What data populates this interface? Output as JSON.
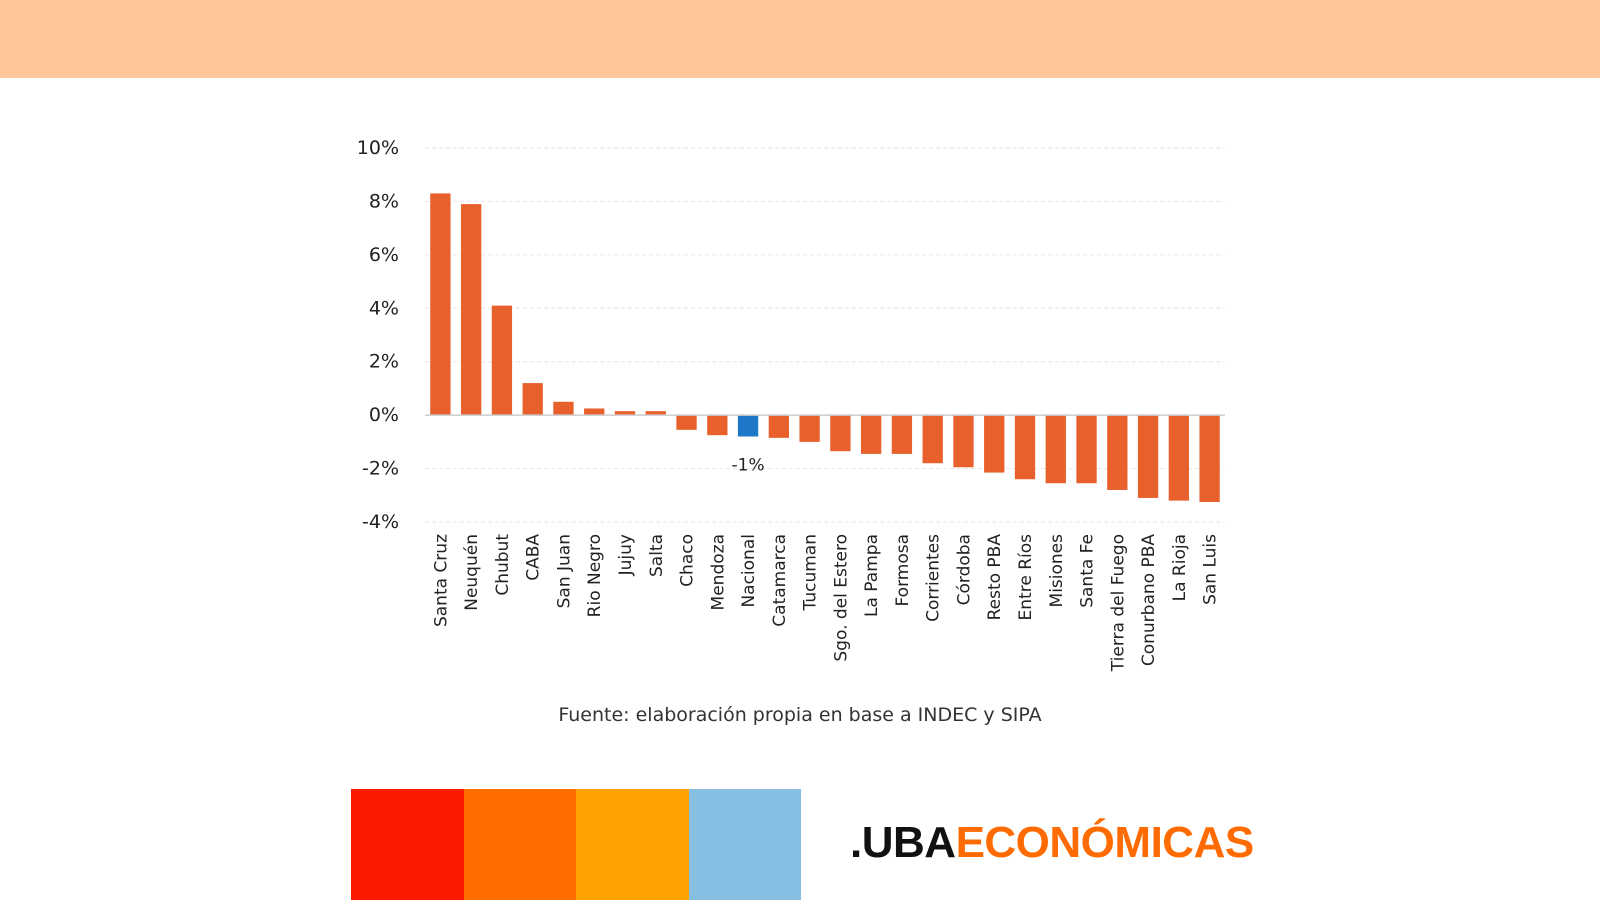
{
  "colors": {
    "header_band": "#ffc799",
    "bar_default": "#e8602c",
    "bar_highlight": "#1f77c8",
    "grid": "#e6e6e6",
    "zero_line": "#cccccc",
    "text": "#222222",
    "strip": [
      "#f91a00",
      "#ff6d00",
      "#ffa100",
      "#87bfe3"
    ]
  },
  "chart_data": {
    "type": "bar",
    "title": "",
    "xlabel": "",
    "ylabel": "",
    "ylim": [
      -4,
      10
    ],
    "yticks": [
      -4,
      -2,
      0,
      2,
      4,
      6,
      8,
      10
    ],
    "ytick_suffix": "%",
    "grid": true,
    "highlight": "Nacional",
    "annotation": {
      "category": "Nacional",
      "text": "-1%"
    },
    "categories": [
      "Santa Cruz",
      "Neuquén",
      "Chubut",
      "CABA",
      "San Juan",
      "Rio Negro",
      "Jujuy",
      "Salta",
      "Chaco",
      "Mendoza",
      "Nacional",
      "Catamarca",
      "Tucuman",
      "Sgo. del Estero",
      "La Pampa",
      "Formosa",
      "Corrientes",
      "Córdoba",
      "Resto PBA",
      "Entre Ríos",
      "Misiones",
      "Santa Fe",
      "Tierra del Fuego",
      "Conurbano PBA",
      "La Rioja",
      "San Luis"
    ],
    "values": [
      8.3,
      7.9,
      4.1,
      1.2,
      0.5,
      0.25,
      0.15,
      0.15,
      -0.55,
      -0.75,
      -0.8,
      -0.85,
      -1.0,
      -1.35,
      -1.45,
      -1.45,
      -1.8,
      -1.95,
      -2.15,
      -2.4,
      -2.55,
      -2.55,
      -2.8,
      -3.1,
      -3.2,
      -3.25
    ]
  },
  "source_text": "Fuente: elaboración propia en base a INDEC y SIPA",
  "logo": {
    "prefix": ".UBA",
    "suffix": "ECONÓMICAS"
  }
}
